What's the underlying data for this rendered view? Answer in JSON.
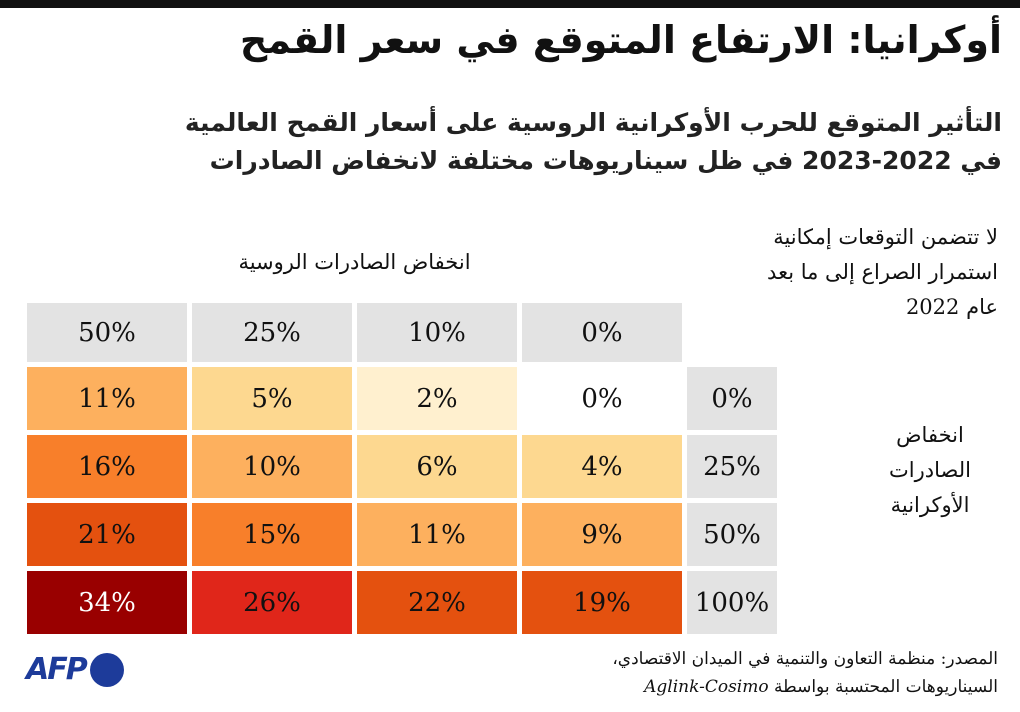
{
  "title": "أوكرانيا: الارتفاع المتوقع في سعر القمح",
  "subtitle_line1": "التأثير المتوقع للحرب الأوكرانية الروسية على أسعار القمح العالمية",
  "subtitle_line2": "في 2022-2023 في ظل سيناريوهات مختلفة لانخفاض الصادرات",
  "note": "لا تتضمن التوقعات إمكانية استمرار الصراع إلى ما بعد عام 2022",
  "source_line1": "المصدر: منظمة التعاون والتنمية في الميدان الاقتصادي،",
  "source_line2": "السيناريوهات المحتسبة بواسطة",
  "source_model": "Aglink-Cosimo",
  "logo_text": "AFP",
  "chart_data": {
    "type": "heatmap",
    "column_axis_label": "انخفاض الصادرات الروسية",
    "row_axis_label": "انخفاض الصادرات الأوكرانية",
    "columns": [
      "50%",
      "25%",
      "10%",
      "0%"
    ],
    "rows": [
      "0%",
      "25%",
      "50%",
      "100%"
    ],
    "values": [
      [
        "11%",
        "5%",
        "2%",
        "0%"
      ],
      [
        "16%",
        "10%",
        "6%",
        "4%"
      ],
      [
        "21%",
        "15%",
        "11%",
        "9%"
      ],
      [
        "34%",
        "26%",
        "22%",
        "19%"
      ]
    ],
    "colors": {
      "header": "#e3e3e3",
      "scale": [
        "#ffffff",
        "#fff0cf",
        "#fdd890",
        "#fdb05e",
        "#f87f2a",
        "#e4510f",
        "#e0261a",
        "#990000"
      ]
    }
  }
}
